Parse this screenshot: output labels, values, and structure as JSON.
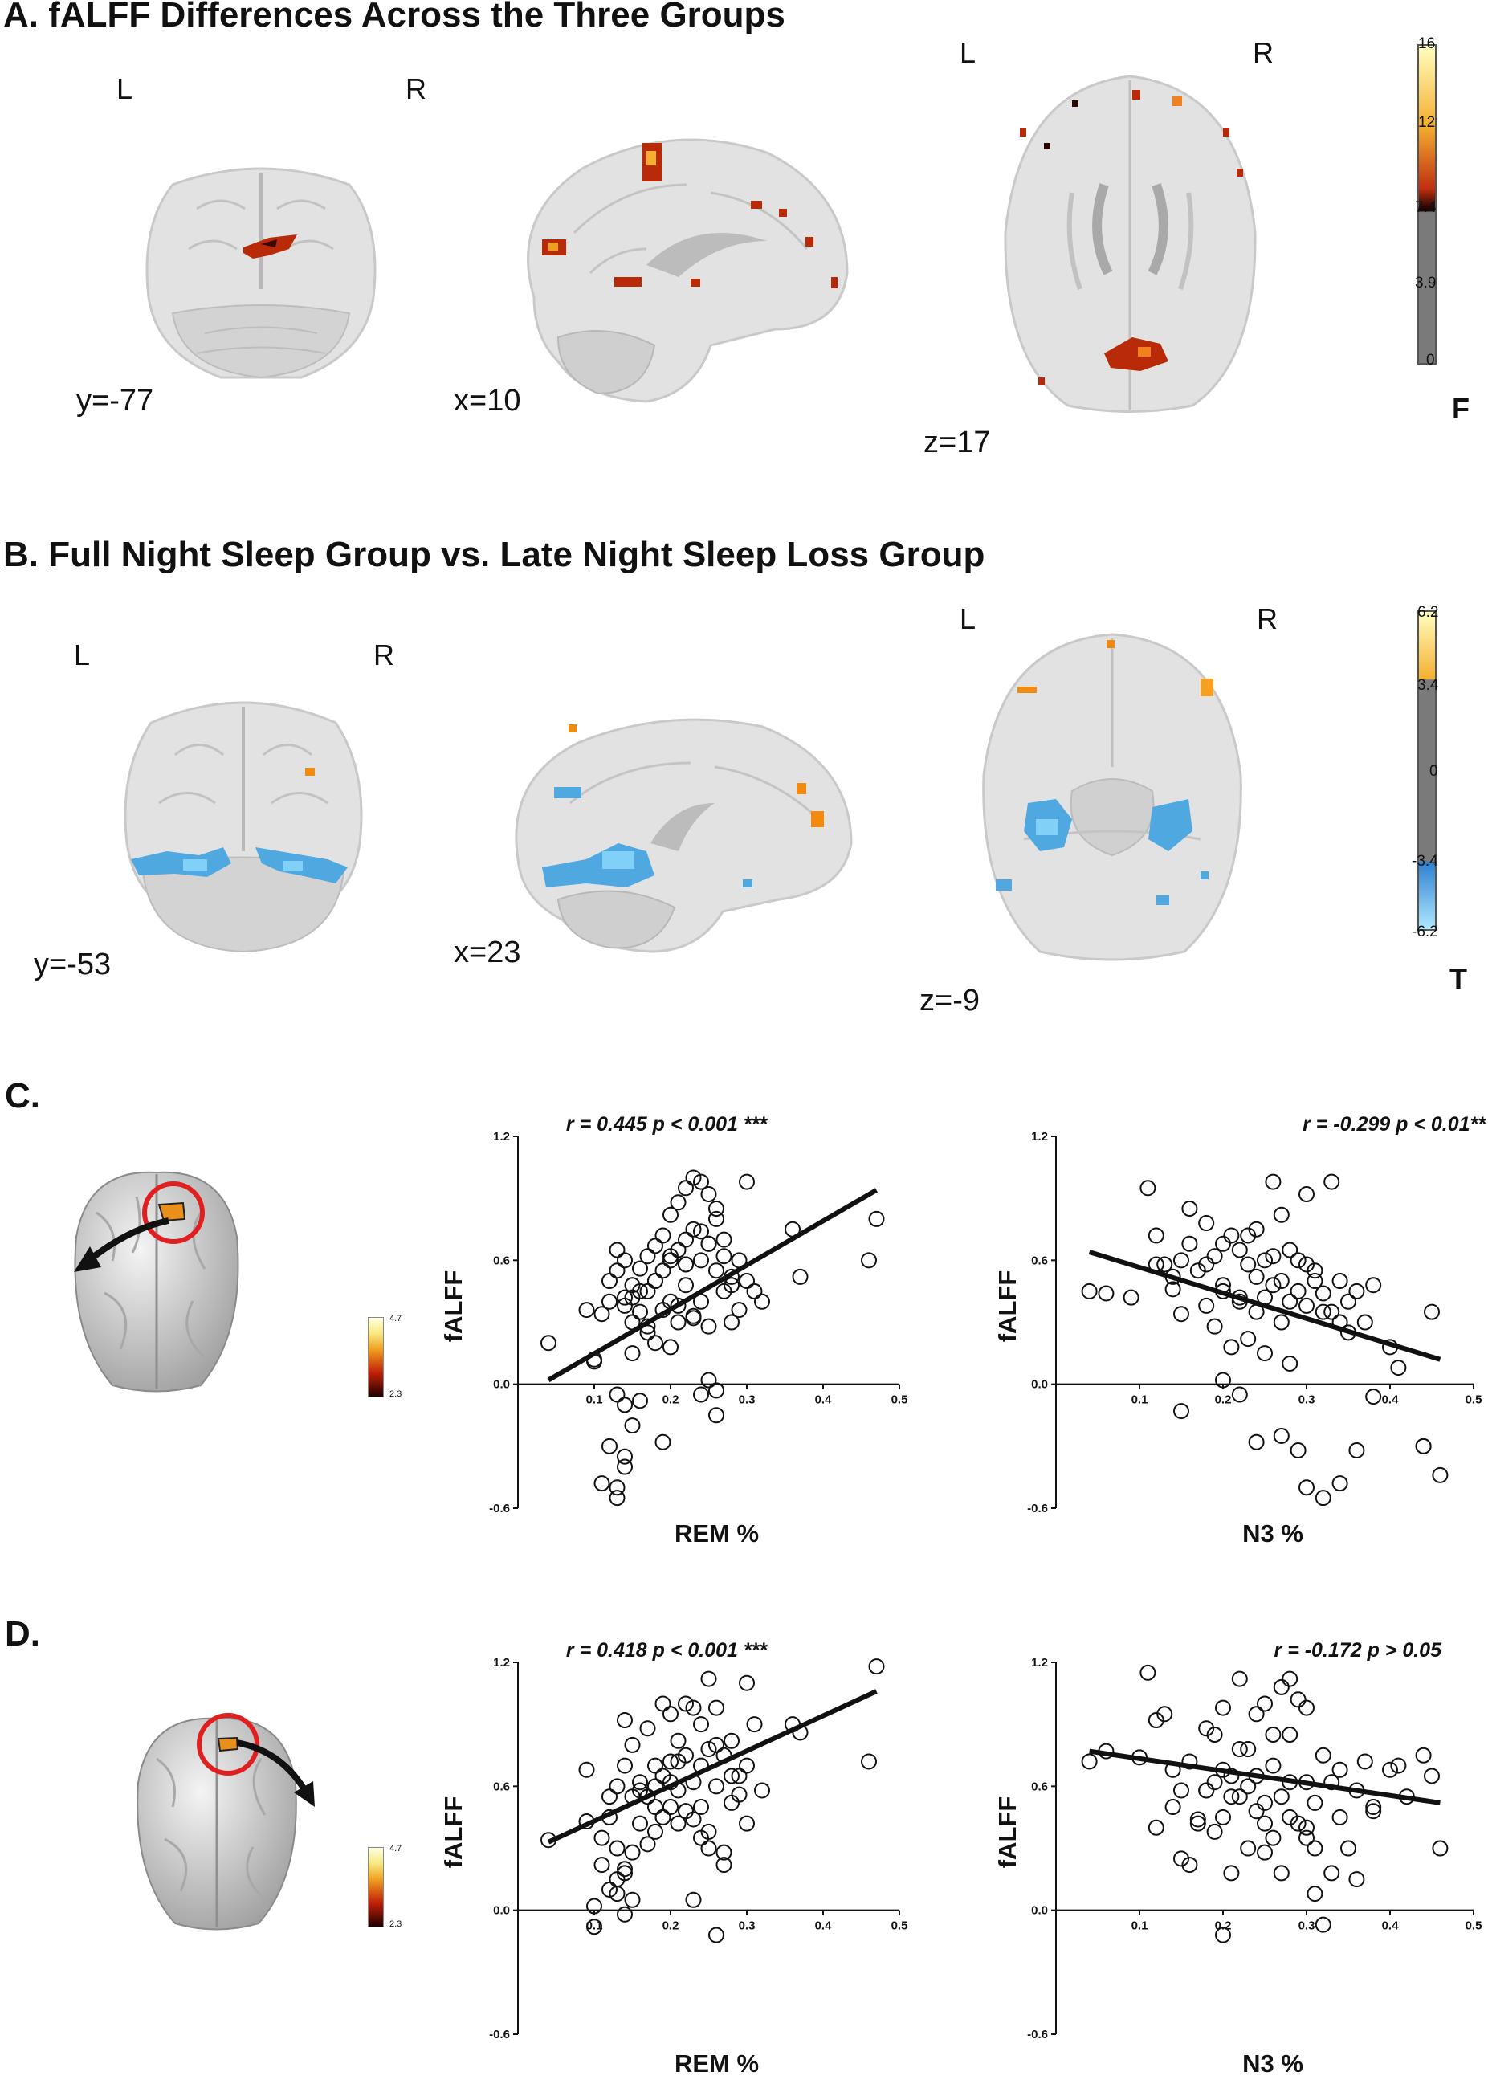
{
  "panelA": {
    "title": "A.  fALFF Differences Across the Three Groups",
    "slices": [
      {
        "L": "L",
        "R": "R",
        "coord": "y=-77"
      },
      {
        "coord": "x=10"
      },
      {
        "L": "L",
        "R": "R",
        "coord": "z=17"
      }
    ],
    "colorbar": {
      "ticks": [
        "16",
        "12",
        "7.4",
        "3.9",
        "0"
      ],
      "unit": "F"
    }
  },
  "panelB": {
    "title": "B.  Full Night Sleep Group vs. Late Night Sleep Loss Group",
    "slices": [
      {
        "L": "L",
        "R": "R",
        "coord": "y=-53"
      },
      {
        "coord": "x=23"
      },
      {
        "L": "L",
        "R": "R",
        "coord": "z=-9"
      }
    ],
    "colorbar": {
      "ticks": [
        "6.2",
        "3.4",
        "0",
        "-3.4",
        "-6.2"
      ],
      "unit": "T"
    }
  },
  "panelC": {
    "label": "C.",
    "mini_colorbar": {
      "max": "4.7",
      "min": "2.3"
    }
  },
  "panelD": {
    "label": "D.",
    "mini_colorbar": {
      "max": "4.7",
      "min": "2.3"
    }
  },
  "chart_data": [
    {
      "type": "scatter",
      "panel": "C",
      "xlabel": "REM %",
      "ylabel": "fALFF",
      "stat": "r = 0.445 p < 0.001 ***",
      "xlim": [
        0,
        0.5
      ],
      "ylim": [
        -0.6,
        1.2
      ],
      "xticks": [
        "0.1",
        "0.2",
        "0.3",
        "0.4",
        "0.5"
      ],
      "yticks": [
        "1.2",
        "0.6",
        "0.0",
        "-0.6"
      ],
      "fit": [
        [
          0.04,
          0.02
        ],
        [
          0.47,
          0.94
        ]
      ],
      "x": [
        0.04,
        0.09,
        0.1,
        0.1,
        0.11,
        0.12,
        0.12,
        0.13,
        0.13,
        0.14,
        0.14,
        0.14,
        0.15,
        0.15,
        0.15,
        0.16,
        0.16,
        0.17,
        0.17,
        0.17,
        0.18,
        0.18,
        0.18,
        0.19,
        0.19,
        0.19,
        0.2,
        0.2,
        0.2,
        0.21,
        0.21,
        0.21,
        0.22,
        0.22,
        0.22,
        0.23,
        0.23,
        0.23,
        0.24,
        0.24,
        0.24,
        0.25,
        0.25,
        0.25,
        0.26,
        0.26,
        0.27,
        0.27,
        0.28,
        0.28,
        0.29,
        0.3,
        0.3,
        0.31,
        0.32,
        0.36,
        0.37,
        0.46,
        0.47,
        0.12,
        0.13,
        0.13,
        0.14,
        0.14,
        0.15,
        0.16,
        0.11,
        0.19,
        0.24,
        0.26,
        0.26,
        0.25,
        0.14,
        0.13,
        0.15,
        0.16,
        0.17,
        0.18,
        0.2,
        0.21,
        0.22,
        0.23,
        0.24,
        0.25,
        0.26,
        0.27,
        0.28,
        0.29,
        0.2,
        0.22
      ],
      "y": [
        0.2,
        0.36,
        0.11,
        0.12,
        0.34,
        0.4,
        0.5,
        0.55,
        0.65,
        0.6,
        0.42,
        0.38,
        0.48,
        0.3,
        0.15,
        0.56,
        0.35,
        0.62,
        0.45,
        0.25,
        0.67,
        0.5,
        0.2,
        0.72,
        0.55,
        0.36,
        0.82,
        0.6,
        0.4,
        0.88,
        0.65,
        0.3,
        0.95,
        0.7,
        0.48,
        1.0,
        0.75,
        0.32,
        0.98,
        0.6,
        0.4,
        0.92,
        0.68,
        0.28,
        0.85,
        0.55,
        0.7,
        0.45,
        0.52,
        0.3,
        0.6,
        0.98,
        0.5,
        0.45,
        0.4,
        0.75,
        0.52,
        0.6,
        0.8,
        -0.3,
        -0.5,
        -0.55,
        -0.35,
        -0.4,
        -0.2,
        -0.08,
        -0.48,
        -0.28,
        -0.05,
        -0.15,
        -0.03,
        0.02,
        -0.1,
        -0.05,
        0.42,
        0.45,
        0.28,
        0.5,
        0.62,
        0.38,
        0.58,
        0.33,
        0.74,
        0.68,
        0.8,
        0.62,
        0.48,
        0.36,
        0.18,
        0.58
      ]
    },
    {
      "type": "scatter",
      "panel": "C",
      "xlabel": "N3 %",
      "ylabel": "fALFF",
      "stat": "r = -0.299 p < 0.01**",
      "xlim": [
        0,
        0.5
      ],
      "ylim": [
        -0.6,
        1.2
      ],
      "xticks": [
        "0.1",
        "0.2",
        "0.3",
        "0.4",
        "0.5"
      ],
      "yticks": [
        "1.2",
        "0.6",
        "0.0",
        "-0.6"
      ],
      "fit": [
        [
          0.04,
          0.64
        ],
        [
          0.46,
          0.12
        ]
      ],
      "x": [
        0.04,
        0.06,
        0.09,
        0.11,
        0.12,
        0.13,
        0.14,
        0.15,
        0.15,
        0.16,
        0.17,
        0.18,
        0.18,
        0.19,
        0.19,
        0.2,
        0.2,
        0.21,
        0.21,
        0.22,
        0.22,
        0.23,
        0.23,
        0.24,
        0.24,
        0.25,
        0.25,
        0.26,
        0.26,
        0.27,
        0.27,
        0.28,
        0.28,
        0.29,
        0.3,
        0.3,
        0.31,
        0.32,
        0.33,
        0.34,
        0.35,
        0.36,
        0.37,
        0.38,
        0.4,
        0.41,
        0.44,
        0.45,
        0.15,
        0.2,
        0.22,
        0.24,
        0.27,
        0.29,
        0.3,
        0.32,
        0.34,
        0.36,
        0.38,
        0.44,
        0.46,
        0.16,
        0.18,
        0.2,
        0.22,
        0.24,
        0.26,
        0.28,
        0.3,
        0.32,
        0.34,
        0.12,
        0.14,
        0.23,
        0.25,
        0.27,
        0.29,
        0.31,
        0.33,
        0.35
      ],
      "y": [
        0.45,
        0.44,
        0.42,
        0.95,
        0.72,
        0.58,
        0.52,
        0.34,
        0.6,
        0.68,
        0.55,
        0.78,
        0.38,
        0.62,
        0.28,
        0.68,
        0.45,
        0.72,
        0.18,
        0.65,
        0.4,
        0.58,
        0.22,
        0.75,
        0.35,
        0.6,
        0.15,
        0.98,
        0.48,
        0.82,
        0.3,
        0.65,
        0.1,
        0.45,
        0.92,
        0.38,
        0.55,
        0.35,
        0.98,
        0.5,
        0.25,
        0.45,
        0.3,
        0.48,
        0.18,
        0.08,
        -0.3,
        0.35,
        -0.13,
        0.02,
        -0.05,
        -0.28,
        -0.25,
        -0.32,
        -0.5,
        -0.55,
        -0.48,
        -0.32,
        -0.06,
        -0.3,
        -0.44,
        0.85,
        0.58,
        0.48,
        0.42,
        0.52,
        0.62,
        0.4,
        0.58,
        0.44,
        0.3,
        0.58,
        0.46,
        0.72,
        0.42,
        0.5,
        0.6,
        0.5,
        0.35,
        0.4
      ]
    },
    {
      "type": "scatter",
      "panel": "D",
      "xlabel": "REM %",
      "ylabel": "fALFF",
      "stat": "r = 0.418 p < 0.001 ***",
      "xlim": [
        0,
        0.5
      ],
      "ylim": [
        -0.6,
        1.2
      ],
      "xticks": [
        "0.1",
        "0.2",
        "0.3",
        "0.4",
        "0.5"
      ],
      "yticks": [
        "1.2",
        "0.6",
        "0.0",
        "-0.6"
      ],
      "fit": [
        [
          0.04,
          0.33
        ],
        [
          0.47,
          1.06
        ]
      ],
      "x": [
        0.04,
        0.09,
        0.09,
        0.1,
        0.11,
        0.12,
        0.12,
        0.13,
        0.13,
        0.14,
        0.14,
        0.14,
        0.15,
        0.15,
        0.15,
        0.16,
        0.16,
        0.17,
        0.17,
        0.17,
        0.18,
        0.18,
        0.18,
        0.19,
        0.19,
        0.19,
        0.2,
        0.2,
        0.2,
        0.21,
        0.21,
        0.21,
        0.22,
        0.22,
        0.22,
        0.23,
        0.23,
        0.23,
        0.24,
        0.24,
        0.24,
        0.25,
        0.25,
        0.25,
        0.26,
        0.26,
        0.27,
        0.27,
        0.28,
        0.28,
        0.29,
        0.3,
        0.3,
        0.31,
        0.32,
        0.36,
        0.37,
        0.46,
        0.47,
        0.12,
        0.13,
        0.13,
        0.14,
        0.14,
        0.15,
        0.1,
        0.11,
        0.26,
        0.25,
        0.27,
        0.23,
        0.22,
        0.16,
        0.18,
        0.19,
        0.2,
        0.21,
        0.24,
        0.26,
        0.28,
        0.29,
        0.3
      ],
      "y": [
        0.34,
        0.68,
        0.43,
        -0.08,
        0.22,
        0.55,
        0.45,
        0.3,
        0.6,
        0.92,
        0.7,
        0.2,
        0.8,
        0.55,
        0.28,
        0.62,
        0.42,
        0.88,
        0.55,
        0.32,
        0.7,
        0.5,
        0.38,
        1.0,
        0.65,
        0.45,
        0.95,
        0.72,
        0.5,
        0.82,
        0.58,
        0.42,
        1.0,
        0.75,
        0.48,
        0.98,
        0.62,
        0.44,
        0.9,
        0.7,
        0.5,
        1.12,
        0.78,
        0.38,
        0.98,
        0.6,
        0.75,
        0.28,
        0.82,
        0.52,
        0.65,
        1.1,
        0.42,
        0.9,
        0.58,
        0.9,
        0.86,
        0.72,
        1.18,
        0.1,
        0.15,
        0.08,
        -0.02,
        0.18,
        0.05,
        0.02,
        0.35,
        -0.12,
        0.3,
        0.22,
        0.05,
        0.48,
        0.58,
        0.6,
        0.45,
        0.62,
        0.72,
        0.35,
        0.8,
        0.65,
        0.56,
        0.7
      ]
    },
    {
      "type": "scatter",
      "panel": "D",
      "xlabel": "N3 %",
      "ylabel": "fALFF",
      "stat": "r = -0.172 p > 0.05",
      "xlim": [
        0,
        0.5
      ],
      "ylim": [
        -0.6,
        1.2
      ],
      "xticks": [
        "0.1",
        "0.2",
        "0.3",
        "0.4",
        "0.5"
      ],
      "yticks": [
        "1.2",
        "0.6",
        "0.0",
        "-0.6"
      ],
      "fit": [
        [
          0.04,
          0.77
        ],
        [
          0.46,
          0.52
        ]
      ],
      "x": [
        0.04,
        0.06,
        0.1,
        0.11,
        0.12,
        0.13,
        0.14,
        0.15,
        0.15,
        0.16,
        0.17,
        0.18,
        0.18,
        0.19,
        0.19,
        0.2,
        0.2,
        0.21,
        0.21,
        0.22,
        0.22,
        0.23,
        0.23,
        0.24,
        0.24,
        0.25,
        0.25,
        0.26,
        0.26,
        0.27,
        0.27,
        0.28,
        0.28,
        0.29,
        0.3,
        0.3,
        0.31,
        0.32,
        0.33,
        0.34,
        0.35,
        0.36,
        0.37,
        0.38,
        0.4,
        0.41,
        0.44,
        0.45,
        0.46,
        0.2,
        0.31,
        0.32,
        0.33,
        0.36,
        0.23,
        0.25,
        0.28,
        0.3,
        0.12,
        0.14,
        0.16,
        0.18,
        0.2,
        0.22,
        0.24,
        0.26,
        0.28,
        0.3,
        0.34,
        0.38,
        0.42,
        0.25,
        0.27,
        0.29,
        0.31,
        0.21,
        0.19,
        0.17
      ],
      "y": [
        0.72,
        0.77,
        0.74,
        1.15,
        0.92,
        0.95,
        0.68,
        0.58,
        0.25,
        0.72,
        0.42,
        0.88,
        0.58,
        0.85,
        0.38,
        0.98,
        0.45,
        0.65,
        0.18,
        1.12,
        0.55,
        0.78,
        0.3,
        0.95,
        0.48,
        1.0,
        0.42,
        0.85,
        0.35,
        1.08,
        0.55,
        1.12,
        0.62,
        1.02,
        0.98,
        0.4,
        0.52,
        0.75,
        0.62,
        0.45,
        0.3,
        0.58,
        0.72,
        0.5,
        0.68,
        0.7,
        0.75,
        0.65,
        0.3,
        -0.12,
        0.08,
        -0.07,
        0.18,
        0.15,
        0.6,
        0.52,
        0.45,
        0.35,
        0.4,
        0.5,
        0.22,
        0.58,
        0.68,
        0.78,
        0.65,
        0.7,
        0.85,
        0.62,
        0.68,
        0.48,
        0.55,
        0.28,
        0.18,
        0.42,
        0.3,
        0.55,
        0.62,
        0.44
      ]
    }
  ]
}
